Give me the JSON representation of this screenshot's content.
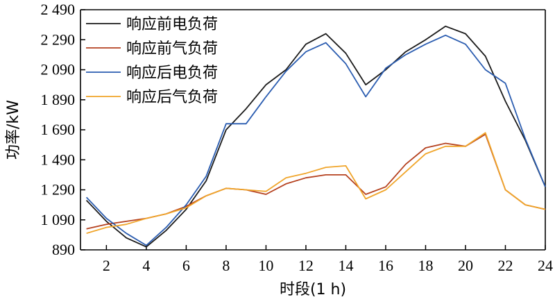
{
  "chart_data": {
    "type": "line",
    "xlabel": "时段(1 h)",
    "ylabel": "功率/kW",
    "xlim": [
      0.7,
      24
    ],
    "ylim": [
      890,
      2490
    ],
    "x_ticks": [
      2,
      4,
      6,
      8,
      10,
      12,
      14,
      16,
      18,
      20,
      22,
      24
    ],
    "x_tick_labels": [
      "2",
      "4",
      "6",
      "8",
      "10",
      "12",
      "14",
      "16",
      "18",
      "20",
      "22",
      "24"
    ],
    "y_ticks": [
      890,
      1090,
      1290,
      1490,
      1690,
      1890,
      2090,
      2290,
      2490
    ],
    "y_tick_labels": [
      "890",
      "1 090",
      "1 290",
      "1 490",
      "1 690",
      "1 890",
      "2 090",
      "2 290",
      "2 490"
    ],
    "grid": false,
    "legend_position": "top-left",
    "x": [
      1,
      2,
      3,
      4,
      5,
      6,
      7,
      8,
      9,
      10,
      11,
      12,
      13,
      14,
      15,
      16,
      17,
      18,
      19,
      20,
      21,
      22,
      23,
      24
    ],
    "series": [
      {
        "name": "响应前电负荷",
        "color": "#1a1a1a",
        "values": [
          1220,
          1080,
          970,
          910,
          1020,
          1160,
          1350,
          1690,
          1830,
          1990,
          2090,
          2260,
          2330,
          2200,
          1990,
          2090,
          2210,
          2290,
          2380,
          2330,
          2180,
          1880,
          1620,
          1310
        ]
      },
      {
        "name": "响应前气负荷",
        "color": "#b5411f",
        "values": [
          1030,
          1060,
          1080,
          1100,
          1130,
          1180,
          1250,
          1300,
          1290,
          1260,
          1330,
          1370,
          1390,
          1390,
          1260,
          1310,
          1460,
          1570,
          1600,
          1580,
          1660,
          1290,
          1190,
          1160
        ]
      },
      {
        "name": "响应后电负荷",
        "color": "#2a5cb0",
        "values": [
          1240,
          1100,
          1000,
          920,
          1040,
          1190,
          1380,
          1730,
          1730,
          1910,
          2080,
          2210,
          2270,
          2130,
          1910,
          2100,
          2190,
          2260,
          2320,
          2260,
          2090,
          2000,
          1630,
          1310
        ]
      },
      {
        "name": "响应后气负荷",
        "color": "#f0a52a",
        "values": [
          1000,
          1040,
          1060,
          1100,
          1130,
          1170,
          1250,
          1300,
          1290,
          1280,
          1370,
          1400,
          1440,
          1450,
          1230,
          1290,
          1410,
          1530,
          1580,
          1580,
          1670,
          1290,
          1190,
          1160
        ]
      }
    ]
  }
}
